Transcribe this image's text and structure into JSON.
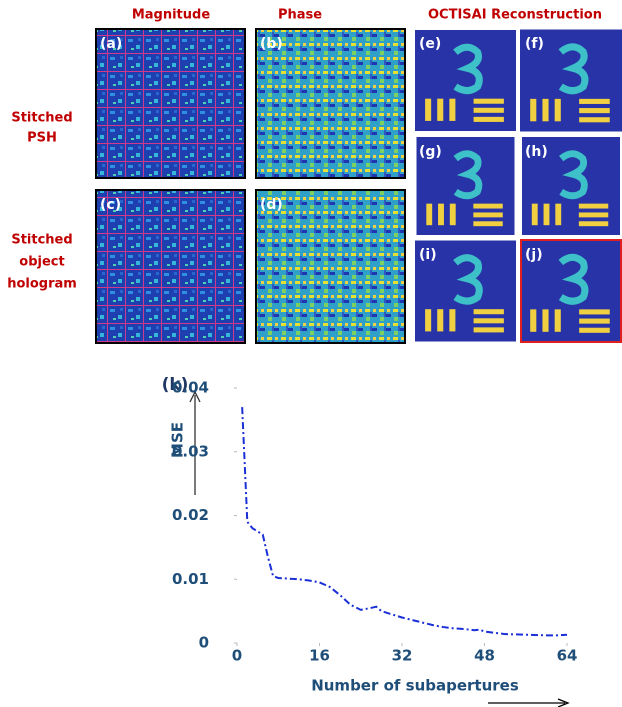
{
  "header": {
    "columns": [
      "Magnitude",
      "Phase",
      "OCTISAI Reconstruction"
    ]
  },
  "rows": [
    {
      "label_lines": [
        "Stitched",
        "PSH"
      ]
    },
    {
      "label_lines": [
        "Stitched",
        "object",
        "hologram"
      ]
    }
  ],
  "panels": [
    "(a)",
    "(b)",
    "(c)",
    "(d)",
    "(e)",
    "(f)",
    "(g)",
    "(h)",
    "(i)",
    "(j)"
  ],
  "chart_data": {
    "type": "line",
    "panel_label": "(k)",
    "y_label": "MSE",
    "x_label": "Number of subapertures",
    "x": [
      1,
      2,
      3,
      4,
      5,
      6,
      7,
      8,
      10,
      12,
      14,
      16,
      18,
      20,
      22,
      24,
      26,
      27,
      28,
      30,
      32,
      34,
      36,
      38,
      40,
      42,
      44,
      46,
      47,
      48,
      50,
      52,
      56,
      60,
      62,
      64
    ],
    "series": [
      {
        "color": "#1a2fd6",
        "line_style": "dashdot",
        "values": [
          0.037,
          0.019,
          0.018,
          0.0175,
          0.017,
          0.0135,
          0.0105,
          0.0102,
          0.0101,
          0.01,
          0.0098,
          0.0095,
          0.0088,
          0.0075,
          0.006,
          0.0052,
          0.0055,
          0.0057,
          0.005,
          0.0045,
          0.004,
          0.0036,
          0.0032,
          0.0028,
          0.0025,
          0.0023,
          0.0022,
          0.002,
          0.0021,
          0.0018,
          0.0016,
          0.0014,
          0.0013,
          0.0012,
          0.0012,
          0.0013
        ]
      }
    ],
    "xlim": [
      0,
      64
    ],
    "ylim": [
      0,
      0.04
    ],
    "xticks": [
      0,
      16,
      32,
      48,
      64
    ],
    "yticks": [
      0,
      0.01,
      0.02,
      0.03,
      0.04
    ]
  }
}
